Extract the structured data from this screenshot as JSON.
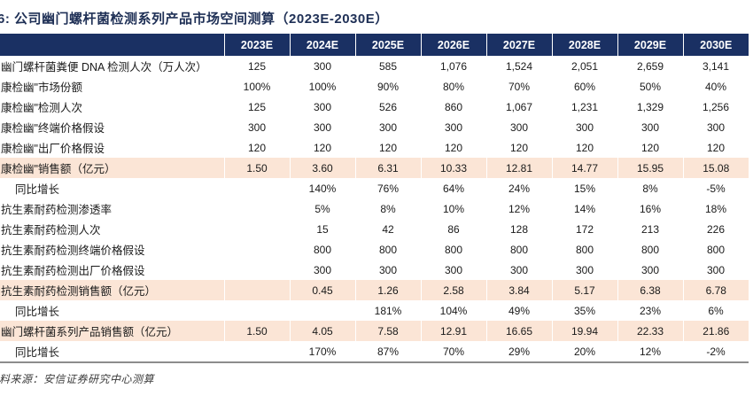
{
  "page": {
    "title": "6: 公司幽门螺杆菌检测系列产品市场空间测算（2023E-2030E）",
    "source_note": "料来源：安信证券研究中心测算"
  },
  "colors": {
    "header_bg": "#1a3063",
    "highlight_bg": "#fbe5d6",
    "title_color": "#1f3056",
    "border_gray": "#8c8c8c"
  },
  "table": {
    "column_headers": [
      "",
      "2023E",
      "2024E",
      "2025E",
      "2026E",
      "2027E",
      "2028E",
      "2029E",
      "2030E"
    ],
    "rows": [
      {
        "label": "幽门螺杆菌粪便 DNA 检测人次（万人次）",
        "style": "normal",
        "values": [
          "125",
          "300",
          "585",
          "1,076",
          "1,524",
          "2,051",
          "2,659",
          "3,141"
        ]
      },
      {
        "label": "康检幽\"市场份额",
        "style": "normal",
        "values": [
          "100%",
          "100%",
          "90%",
          "80%",
          "70%",
          "60%",
          "50%",
          "40%"
        ]
      },
      {
        "label": "康检幽\"检测人次",
        "style": "normal",
        "values": [
          "125",
          "300",
          "526",
          "860",
          "1,067",
          "1,231",
          "1,329",
          "1,256"
        ]
      },
      {
        "label": "康检幽\"终端价格假设",
        "style": "normal",
        "values": [
          "300",
          "300",
          "300",
          "300",
          "300",
          "300",
          "300",
          "300"
        ]
      },
      {
        "label": "康检幽\"出厂价格假设",
        "style": "normal",
        "values": [
          "120",
          "120",
          "120",
          "120",
          "120",
          "120",
          "120",
          "120"
        ]
      },
      {
        "label": "康检幽\"销售额（亿元）",
        "style": "highlight",
        "values": [
          "1.50",
          "3.60",
          "6.31",
          "10.33",
          "12.81",
          "14.77",
          "15.95",
          "15.08"
        ]
      },
      {
        "label": "同比增长",
        "style": "indent",
        "values": [
          "",
          "140%",
          "76%",
          "64%",
          "24%",
          "15%",
          "8%",
          "-5%"
        ]
      },
      {
        "label": "抗生素耐药检测渗透率",
        "style": "normal",
        "values": [
          "",
          "5%",
          "8%",
          "10%",
          "12%",
          "14%",
          "16%",
          "18%"
        ]
      },
      {
        "label": "抗生素耐药检测人次",
        "style": "normal",
        "values": [
          "",
          "15",
          "42",
          "86",
          "128",
          "172",
          "213",
          "226"
        ]
      },
      {
        "label": "抗生素耐药检测终端价格假设",
        "style": "normal",
        "values": [
          "",
          "800",
          "800",
          "800",
          "800",
          "800",
          "800",
          "800"
        ]
      },
      {
        "label": "抗生素耐药检测出厂价格假设",
        "style": "normal",
        "values": [
          "",
          "300",
          "300",
          "300",
          "300",
          "300",
          "300",
          "300"
        ]
      },
      {
        "label": "抗生素耐药检测销售额（亿元）",
        "style": "highlight",
        "values": [
          "",
          "0.45",
          "1.26",
          "2.58",
          "3.84",
          "5.17",
          "6.38",
          "6.78"
        ]
      },
      {
        "label": "同比增长",
        "style": "indent",
        "values": [
          "",
          "",
          "181%",
          "104%",
          "49%",
          "35%",
          "23%",
          "6%"
        ]
      },
      {
        "label": "幽门螺杆菌系列产品销售额（亿元）",
        "style": "highlight",
        "values": [
          "1.50",
          "4.05",
          "7.58",
          "12.91",
          "16.65",
          "19.94",
          "22.33",
          "21.86"
        ]
      },
      {
        "label": "同比增长",
        "style": "indent",
        "values": [
          "",
          "170%",
          "87%",
          "70%",
          "29%",
          "20%",
          "12%",
          "-2%"
        ]
      }
    ]
  }
}
